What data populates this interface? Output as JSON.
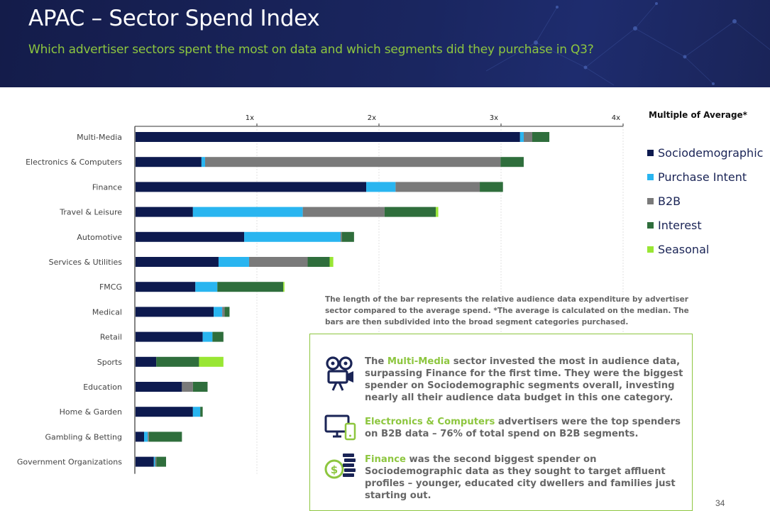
{
  "header": {
    "title": "APAC – Sector Spend Index",
    "subtitle": "Which advertiser sectors spent the most on data and which segments did they purchase in Q3?"
  },
  "chart_data": {
    "type": "bar",
    "orientation": "horizontal",
    "stacked": true,
    "xlabel": "Multiple of Average*",
    "xlim": [
      0,
      4
    ],
    "xticks": [
      "1x",
      "2x",
      "3x",
      "4x"
    ],
    "grid": "vertical",
    "legend_position": "right",
    "categories": [
      "Multi-Media",
      "Electronics & Computers",
      "Finance",
      "Travel & Leisure",
      "Automotive",
      "Services & Utilities",
      "FMCG",
      "Medical",
      "Retail",
      "Sports",
      "Education",
      "Home & Garden",
      "Gambling & Betting",
      "Government Organizations"
    ],
    "series": [
      {
        "name": "Sociodemographic",
        "color": "#0d1a4f",
        "values": [
          3.15,
          0.54,
          1.89,
          0.47,
          0.89,
          0.68,
          0.49,
          0.64,
          0.55,
          0.17,
          0.38,
          0.47,
          0.07,
          0.15
        ]
      },
      {
        "name": "Purchase Intent",
        "color": "#29b5f0",
        "values": [
          0.03,
          0.03,
          0.24,
          0.9,
          0.79,
          0.25,
          0.18,
          0.07,
          0.08,
          0.0,
          0.0,
          0.06,
          0.03,
          0.01
        ]
      },
      {
        "name": "B2B",
        "color": "#7a7a7a",
        "values": [
          0.07,
          2.42,
          0.69,
          0.67,
          0.01,
          0.48,
          0.0,
          0.02,
          0.0,
          0.0,
          0.09,
          0.0,
          0.01,
          0.01
        ]
      },
      {
        "name": "Interest",
        "color": "#2f6e3c",
        "values": [
          0.14,
          0.19,
          0.19,
          0.42,
          0.1,
          0.18,
          0.54,
          0.04,
          0.09,
          0.35,
          0.12,
          0.02,
          0.27,
          0.08
        ]
      },
      {
        "name": "Seasonal",
        "color": "#99e634",
        "values": [
          0.0,
          0.0,
          0.0,
          0.02,
          0.0,
          0.03,
          0.01,
          0.0,
          0.0,
          0.2,
          0.0,
          0.0,
          0.0,
          0.0
        ]
      }
    ]
  },
  "legend": {
    "title": "Multiple of Average*",
    "items": [
      "Sociodemographic",
      "Purchase Intent",
      "B2B",
      "Interest",
      "Seasonal"
    ]
  },
  "footnote": "The length of the bar represents the relative audience data expenditure by advertiser sector compared to the average spend. *The average is calculated on the median. The bars are then subdivided into the broad segment categories purchased.",
  "insights": [
    {
      "icon": "film-camera-icon",
      "highlight": "Multi-Media",
      "pre": "The ",
      "text": " sector invested the most in audience data, surpassing Finance for the first time. They were the biggest spender on Sociodemographic segments overall, investing nearly all their audience data budget in this one category."
    },
    {
      "icon": "computer-devices-icon",
      "highlight": "Electronics & Computers",
      "pre": "",
      "text": " advertisers were the top spenders on B2B data – 76% of total spend on B2B segments."
    },
    {
      "icon": "money-coins-icon",
      "highlight": "Finance",
      "pre": "",
      "text": " was the second biggest spender on Sociodemographic data as they sought to target affluent profiles – younger, educated city dwellers and families just starting out."
    }
  ],
  "page_number": "34",
  "colors": {
    "accent": "#8dc63f",
    "header_bg": "#1a2456"
  }
}
